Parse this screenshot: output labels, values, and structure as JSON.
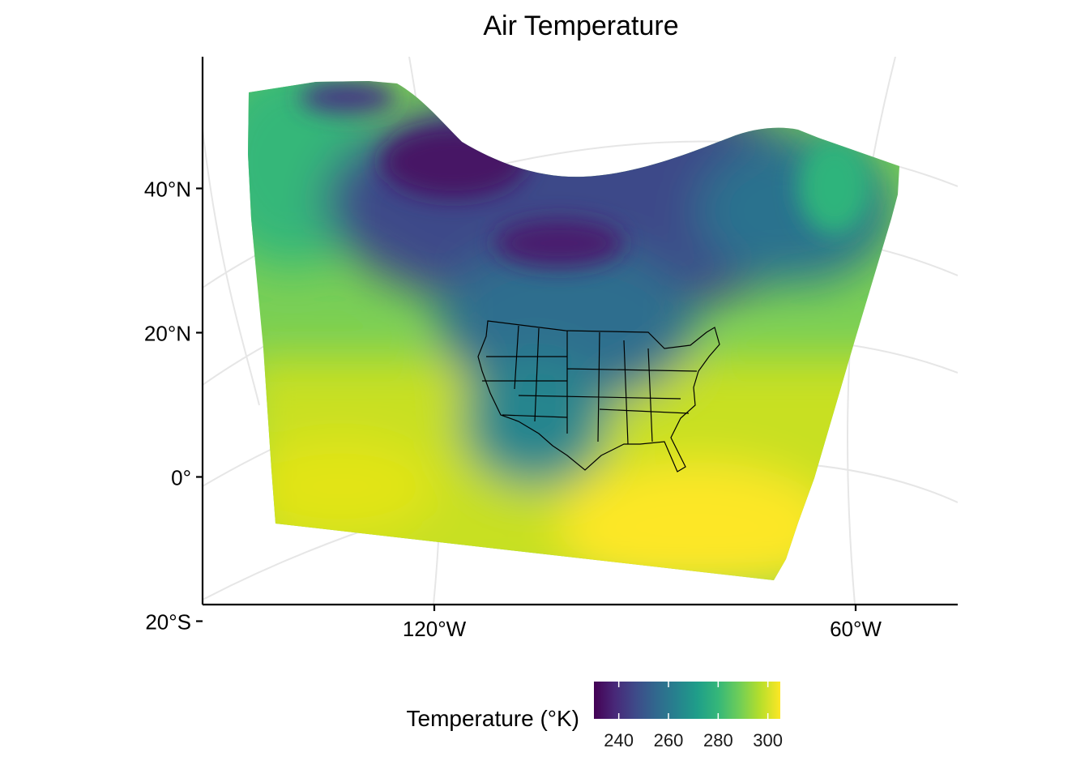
{
  "title": "Air Temperature",
  "map": {
    "projection": "lambert-conformal-conic",
    "field": "air temperature",
    "lat_ticks": [
      {
        "value": 40,
        "label": "40°N"
      },
      {
        "value": 20,
        "label": "20°N"
      },
      {
        "value": 0,
        "label": "0°"
      },
      {
        "value": -20,
        "label": "20°S"
      }
    ],
    "lon_ticks": [
      {
        "value": -120,
        "label": "120°W"
      },
      {
        "value": -60,
        "label": "60°W"
      }
    ],
    "graticule": "light grey",
    "overlay": "US state boundaries"
  },
  "legend": {
    "title": "Temperature (°K)",
    "position": "bottom",
    "palette": "viridis",
    "colors": [
      "#440154",
      "#482878",
      "#3E4A89",
      "#31688E",
      "#26828E",
      "#1F9E89",
      "#35B779",
      "#6DCD59",
      "#B4DE2C",
      "#FDE725"
    ],
    "range": [
      230,
      305
    ],
    "ticks": [
      {
        "value": 240,
        "label": "240"
      },
      {
        "value": 260,
        "label": "260"
      },
      {
        "value": 280,
        "label": "280"
      },
      {
        "value": 300,
        "label": "300"
      }
    ]
  }
}
